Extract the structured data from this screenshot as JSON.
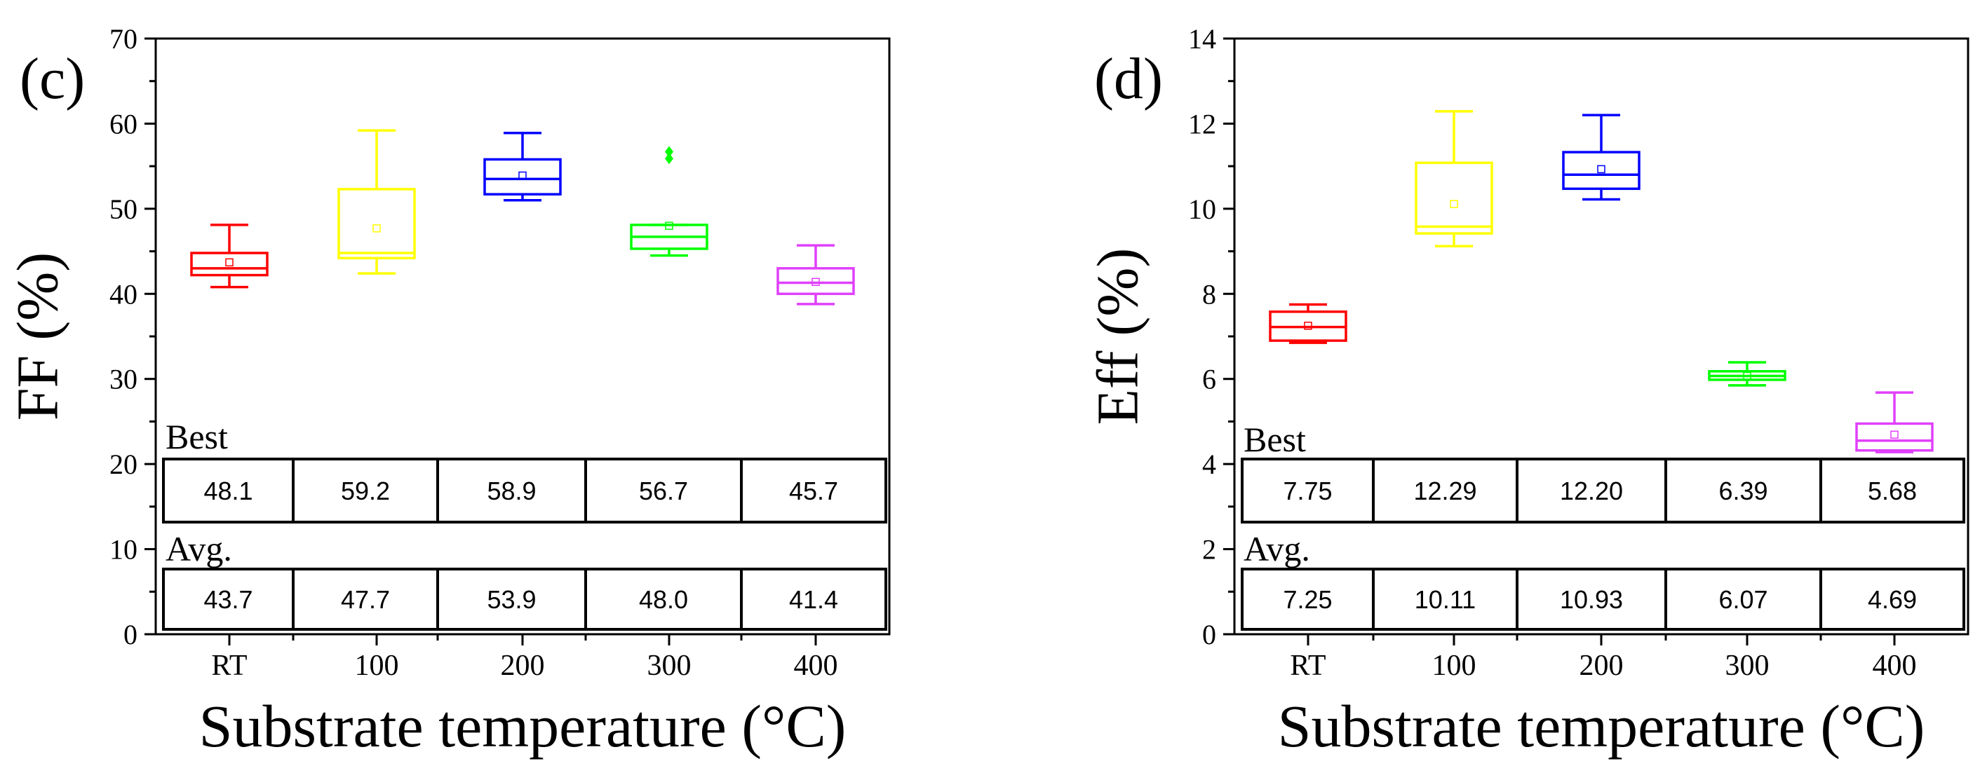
{
  "chart_data": [
    {
      "type": "box",
      "panel_label": "(c)",
      "ylabel": "FF (%)",
      "xlabel": "Substrate temperature (°C)",
      "ylim": [
        0,
        70
      ],
      "yticks": [
        "0",
        "10",
        "20",
        "30",
        "40",
        "50",
        "60",
        "70"
      ],
      "categories": [
        "RT",
        "100",
        "200",
        "300",
        "400"
      ],
      "colors": [
        "#ff0000",
        "#ffff00",
        "#0000ff",
        "#00ff00",
        "#e040fb"
      ],
      "boxes": [
        {
          "category": "RT",
          "min": 40.8,
          "q1": 42.2,
          "median": 43.0,
          "q3": 44.8,
          "max": 48.1,
          "mean": 43.7,
          "outliers": []
        },
        {
          "category": "100",
          "min": 42.4,
          "q1": 44.2,
          "median": 44.8,
          "q3": 52.3,
          "max": 59.2,
          "mean": 47.7,
          "outliers": []
        },
        {
          "category": "200",
          "min": 51.0,
          "q1": 51.7,
          "median": 53.5,
          "q3": 55.8,
          "max": 58.9,
          "mean": 53.9,
          "outliers": []
        },
        {
          "category": "300",
          "min": 44.5,
          "q1": 45.3,
          "median": 46.7,
          "q3": 48.1,
          "max": 48.1,
          "mean": 48.0,
          "outliers": [
            56.7,
            55.9
          ]
        },
        {
          "category": "400",
          "min": 38.8,
          "q1": 40.0,
          "median": 41.3,
          "q3": 43.0,
          "max": 45.7,
          "mean": 41.4,
          "outliers": []
        }
      ],
      "table": {
        "best_label": "Best",
        "avg_label": "Avg.",
        "best": [
          "48.1",
          "59.2",
          "58.9",
          "56.7",
          "45.7"
        ],
        "avg": [
          "43.7",
          "47.7",
          "53.9",
          "48.0",
          "41.4"
        ]
      }
    },
    {
      "type": "box",
      "panel_label": "(d)",
      "ylabel": "Eff (%)",
      "xlabel": "Substrate temperature (°C)",
      "ylim": [
        0,
        14
      ],
      "yticks": [
        "0",
        "2",
        "4",
        "6",
        "8",
        "10",
        "12",
        "14"
      ],
      "categories": [
        "RT",
        "100",
        "200",
        "300",
        "400"
      ],
      "colors": [
        "#ff0000",
        "#ffff00",
        "#0000ff",
        "#00ff00",
        "#e040fb"
      ],
      "boxes": [
        {
          "category": "RT",
          "min": 6.85,
          "q1": 6.9,
          "median": 7.22,
          "q3": 7.58,
          "max": 7.75,
          "mean": 7.25,
          "outliers": []
        },
        {
          "category": "100",
          "min": 9.12,
          "q1": 9.42,
          "median": 9.58,
          "q3": 11.08,
          "max": 12.29,
          "mean": 10.11,
          "outliers": []
        },
        {
          "category": "200",
          "min": 10.22,
          "q1": 10.47,
          "median": 10.8,
          "q3": 11.33,
          "max": 12.2,
          "mean": 10.93,
          "outliers": []
        },
        {
          "category": "300",
          "min": 5.85,
          "q1": 5.98,
          "median": 6.07,
          "q3": 6.18,
          "max": 6.39,
          "mean": 6.07,
          "outliers": []
        },
        {
          "category": "400",
          "min": 4.28,
          "q1": 4.32,
          "median": 4.55,
          "q3": 4.95,
          "max": 5.68,
          "mean": 4.69,
          "outliers": []
        }
      ],
      "table": {
        "best_label": "Best",
        "avg_label": "Avg.",
        "best": [
          "7.75",
          "12.29",
          "12.20",
          "6.39",
          "5.68"
        ],
        "avg": [
          "7.25",
          "10.11",
          "10.93",
          "6.07",
          "4.69"
        ]
      }
    }
  ]
}
